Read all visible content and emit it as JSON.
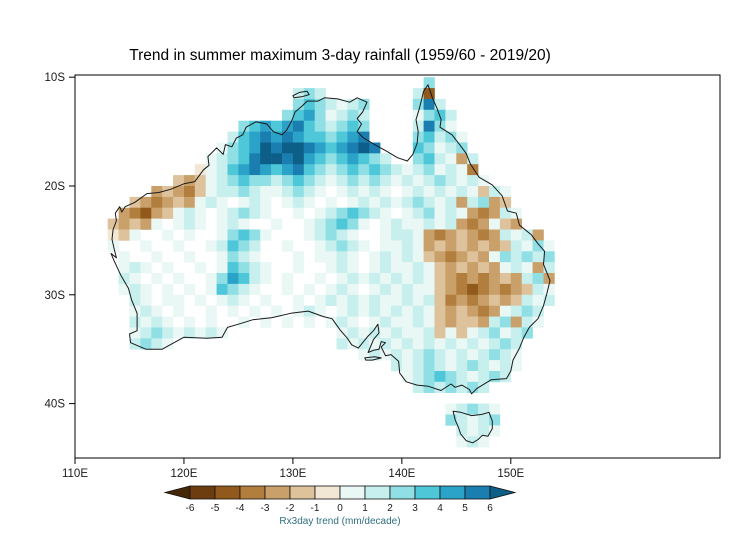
{
  "figure": {
    "background": "#ffffff"
  },
  "chart_data": {
    "type": "heatmap",
    "title": "Trend in summer maximum 3-day rainfall (1959/60 - 2019/20)",
    "variable": "Rx3day trend",
    "units": "mm/decade",
    "region": "Australia",
    "axis_ranges": {
      "lon_min": 110,
      "lon_max": 169.2,
      "lat_min_S": 9.8,
      "lat_max_S": 45.0
    },
    "axes": {
      "x_ticks": [
        {
          "value": 110,
          "label": "110E"
        },
        {
          "value": 120,
          "label": "120E"
        },
        {
          "value": 130,
          "label": "130E"
        },
        {
          "value": 140,
          "label": "140E"
        },
        {
          "value": 150,
          "label": "150E"
        }
      ],
      "y_ticks": [
        {
          "value": 10,
          "label": "10S"
        },
        {
          "value": 20,
          "label": "20S"
        },
        {
          "value": 30,
          "label": "30S"
        },
        {
          "value": 40,
          "label": "40S"
        }
      ]
    },
    "colorbar": {
      "label": "Rx3day trend (mm/decade)",
      "label_color": "#2f6f80",
      "tick_color": "#1a1a1a",
      "outline_color": "#111111",
      "tick_labels": [
        "-6",
        "-5",
        "-4",
        "-3",
        "-2",
        "-1",
        "0",
        "1",
        "2",
        "3",
        "4",
        "5",
        "6"
      ],
      "segment_colors": [
        "#6e3d0f",
        "#91591b",
        "#b27e3e",
        "#c9a06a",
        "#ddc29c",
        "#f2e6d4",
        "#e9f7f5",
        "#c6efed",
        "#8fdfe4",
        "#4ec7d9",
        "#2ba3c8",
        "#1a7fb0"
      ],
      "left_cap_color": "#452708",
      "right_cap_color": "#0d5f88"
    },
    "palette": {
      "classes": {
        "A": "#452708",
        "B": "#6e3d0f",
        "C": "#91591b",
        "D": "#b27e3e",
        "E": "#c9a06a",
        "F": "#ddc29c",
        "G": "#f2e6d4",
        "w": "#ffffff",
        "h": "#e9f7f5",
        "i": "#c6efed",
        "j": "#8fdfe4",
        "k": "#4ec7d9",
        "l": "#2ba3c8",
        "m": "#1a7fb0",
        "n": "#0d5f88"
      },
      "class_value_ranges": {
        "A": "< -6",
        "B": "-6 to -5",
        "C": "-5 to -4",
        "D": "-4 to -3",
        "E": "-3 to -2",
        "F": "-2 to -1",
        "G": "-1 to 0",
        "w": "~0 / no data",
        "h": "0 to 1",
        "i": "1 to 2",
        "j": "2 to 3",
        "k": "3 to 4",
        "l": "4 to 5",
        "m": "5 to 6",
        "n": "> 6"
      }
    },
    "grid": {
      "cell_deg": 1,
      "lon_min": 112,
      "lat_min_S": 10,
      "rows": [
        "..............................j...........",
        "..................iji........iC...........",
        "..................jkjihij....jmi..........",
        ".................jkljhiji....hjki.........",
        ".............jklklmkjijkj....imjh.........",
        "............iklmlmlkkjklm....jkijh........",
        "...........hjklnmnnmlklmnm...kjhij........",
        "..........hijkmnnmnlkjklkji..jkihEi.......",
        ".........GhiklmlklmkjijkjkjihijhihD.......",
        ".......FEFhijkjjijkjihijijihihijihih......",
        ".....EFEDFhiijihhijihwhihihwhihihihFih....",
        "...FEDEFEhihwhihwhihwhwhihihijihiEijEF....",
        "..EDCEFhihwhijihwwhwhijkjihwhijhihEDEih...",
        ".FEFEhwhihwhihwwhwwhijkjhwhihhihiEDEhFE...",
        ".GFhwwhwhwwhjkjhwwwhijihwwhiihEDEFEDEihiE.",
        ".hwwhwwhwwhikjiwwhwwhijihwhhihEFEFEFEFihjh",
        ".whwwhwwhwwhjihwwwhwhhihwhihihFEDEFEhjijij",
        "..hihwhwwhwhkjihwwhwwhihwhihhihFEFEFEhihEi",
        "..ihwhwhwwhjlkihwhwwhwhihihihihFEDEDEFEijE",
        "..hihwhwhwhkjihwwhwhwhihwhihihhFEDCDEDEFih",
        "...ihwhhwhwhihwhwwhwhihihihhihiFDEDEFEFihi",
        "...hihwhwwhwhwhwhwhihwhihihihihFEFEDEhiji.",
        "...ihihwhwhwwhwhwhwhwhihwhihhihFEFFEijEih.",
        "...hijihihih..........hihihihhiFhFhijhij..",
        "...ijih...............ihihihihihihihiji...",
        "........................hihihijihihijih...",
        "...........................ihijihijihih...",
        "............................hijkjihiji....",
        ".............................ijijiji......",
        "..........................................",
        "................................hijih.....",
        "................................jihij.....",
        ".................................ihih.....",
        ".................................hih......"
      ]
    },
    "map_outlines": [
      {
        "name": "australia-mainland",
        "points": [
          [
            142.4,
            10.7
          ],
          [
            142.8,
            11.9
          ],
          [
            143.2,
            12.8
          ],
          [
            143.6,
            13.9
          ],
          [
            143.5,
            14.6
          ],
          [
            144.6,
            15.3
          ],
          [
            145.3,
            16.2
          ],
          [
            145.9,
            17.0
          ],
          [
            146.3,
            18.0
          ],
          [
            147.1,
            19.2
          ],
          [
            148.3,
            19.9
          ],
          [
            149.2,
            20.9
          ],
          [
            149.7,
            22.3
          ],
          [
            150.5,
            22.5
          ],
          [
            150.8,
            23.6
          ],
          [
            151.9,
            24.5
          ],
          [
            152.5,
            25.3
          ],
          [
            153.1,
            26.0
          ],
          [
            153.0,
            27.2
          ],
          [
            153.6,
            28.7
          ],
          [
            153.3,
            29.9
          ],
          [
            153.0,
            31.0
          ],
          [
            152.5,
            32.2
          ],
          [
            151.7,
            33.0
          ],
          [
            151.2,
            33.9
          ],
          [
            150.8,
            34.9
          ],
          [
            150.2,
            36.0
          ],
          [
            150.0,
            37.0
          ],
          [
            149.6,
            37.7
          ],
          [
            148.2,
            37.8
          ],
          [
            146.9,
            38.6
          ],
          [
            146.4,
            39.1
          ],
          [
            146.2,
            38.7
          ],
          [
            145.5,
            38.3
          ],
          [
            144.9,
            38.5
          ],
          [
            144.5,
            38.2
          ],
          [
            143.6,
            38.8
          ],
          [
            142.4,
            38.4
          ],
          [
            141.4,
            38.3
          ],
          [
            140.4,
            38.0
          ],
          [
            139.8,
            37.2
          ],
          [
            139.7,
            36.1
          ],
          [
            139.0,
            35.5
          ],
          [
            138.5,
            35.6
          ],
          [
            138.1,
            34.8
          ],
          [
            138.5,
            34.4
          ],
          [
            138.1,
            34.3
          ],
          [
            137.9,
            35.0
          ],
          [
            137.4,
            35.1
          ],
          [
            136.9,
            35.3
          ],
          [
            137.4,
            34.1
          ],
          [
            137.9,
            33.5
          ],
          [
            137.8,
            32.7
          ],
          [
            137.4,
            33.3
          ],
          [
            136.9,
            33.8
          ],
          [
            136.0,
            34.9
          ],
          [
            135.4,
            34.6
          ],
          [
            135.0,
            34.0
          ],
          [
            134.3,
            33.2
          ],
          [
            133.6,
            32.2
          ],
          [
            132.8,
            32.0
          ],
          [
            131.4,
            31.5
          ],
          [
            129.8,
            31.7
          ],
          [
            128.1,
            32.1
          ],
          [
            126.3,
            32.3
          ],
          [
            125.0,
            32.7
          ],
          [
            124.0,
            33.0
          ],
          [
            123.5,
            33.9
          ],
          [
            122.1,
            34.0
          ],
          [
            120.0,
            33.9
          ],
          [
            118.0,
            35.0
          ],
          [
            116.5,
            35.0
          ],
          [
            115.1,
            34.4
          ],
          [
            115.0,
            33.6
          ],
          [
            115.7,
            33.3
          ],
          [
            115.7,
            32.6
          ],
          [
            115.7,
            31.7
          ],
          [
            115.2,
            30.5
          ],
          [
            114.9,
            29.4
          ],
          [
            114.2,
            28.2
          ],
          [
            113.6,
            26.9
          ],
          [
            113.3,
            26.2
          ],
          [
            113.8,
            26.6
          ],
          [
            113.6,
            25.8
          ],
          [
            113.4,
            24.9
          ],
          [
            113.5,
            24.0
          ],
          [
            113.8,
            23.2
          ],
          [
            113.7,
            22.5
          ],
          [
            114.1,
            21.9
          ],
          [
            114.3,
            22.4
          ],
          [
            114.6,
            21.9
          ],
          [
            115.5,
            21.5
          ],
          [
            116.6,
            20.7
          ],
          [
            117.7,
            20.6
          ],
          [
            118.8,
            20.3
          ],
          [
            120.0,
            19.8
          ],
          [
            121.0,
            19.6
          ],
          [
            121.8,
            18.5
          ],
          [
            122.3,
            18.1
          ],
          [
            122.2,
            17.3
          ],
          [
            123.0,
            16.5
          ],
          [
            123.6,
            17.1
          ],
          [
            123.8,
            16.2
          ],
          [
            124.4,
            16.4
          ],
          [
            124.8,
            15.6
          ],
          [
            125.4,
            15.3
          ],
          [
            125.7,
            14.6
          ],
          [
            126.6,
            14.1
          ],
          [
            127.6,
            14.3
          ],
          [
            128.2,
            15.0
          ],
          [
            129.0,
            15.3
          ],
          [
            129.4,
            14.9
          ],
          [
            129.9,
            14.0
          ],
          [
            130.2,
            13.2
          ],
          [
            130.9,
            12.6
          ],
          [
            131.3,
            12.2
          ],
          [
            132.3,
            12.2
          ],
          [
            132.9,
            11.9
          ],
          [
            134.1,
            12.0
          ],
          [
            135.2,
            12.3
          ],
          [
            135.9,
            11.9
          ],
          [
            136.8,
            12.3
          ],
          [
            136.4,
            13.2
          ],
          [
            135.9,
            13.8
          ],
          [
            136.3,
            14.3
          ],
          [
            135.9,
            15.0
          ],
          [
            136.5,
            15.6
          ],
          [
            137.5,
            16.2
          ],
          [
            138.6,
            16.8
          ],
          [
            139.6,
            17.4
          ],
          [
            140.5,
            17.7
          ],
          [
            141.0,
            17.1
          ],
          [
            141.4,
            16.1
          ],
          [
            141.5,
            15.0
          ],
          [
            141.3,
            13.9
          ],
          [
            141.6,
            12.9
          ],
          [
            141.8,
            12.1
          ],
          [
            142.0,
            11.3
          ]
        ]
      },
      {
        "name": "tasmania",
        "points": [
          [
            144.7,
            40.7
          ],
          [
            145.4,
            40.8
          ],
          [
            146.4,
            41.1
          ],
          [
            147.3,
            41.0
          ],
          [
            148.0,
            40.8
          ],
          [
            148.3,
            41.6
          ],
          [
            148.3,
            42.3
          ],
          [
            147.9,
            43.0
          ],
          [
            147.4,
            42.9
          ],
          [
            147.0,
            43.3
          ],
          [
            146.5,
            43.6
          ],
          [
            145.9,
            43.4
          ],
          [
            145.4,
            42.8
          ],
          [
            145.2,
            42.2
          ],
          [
            144.9,
            41.5
          ]
        ]
      },
      {
        "name": "melville-island",
        "points": [
          [
            130.0,
            11.7
          ],
          [
            130.6,
            11.4
          ],
          [
            131.3,
            11.3
          ],
          [
            131.5,
            11.6
          ],
          [
            130.8,
            11.8
          ],
          [
            130.1,
            11.9
          ]
        ]
      },
      {
        "name": "kangaroo-island",
        "points": [
          [
            136.6,
            35.8
          ],
          [
            137.5,
            35.7
          ],
          [
            138.1,
            35.8
          ],
          [
            137.3,
            36.0
          ],
          [
            136.7,
            36.0
          ]
        ]
      }
    ],
    "colors": {
      "coastline": "#1a1a1a",
      "frame": "#000000",
      "tick_label": "#1a1a1a",
      "title": "#000000"
    }
  }
}
